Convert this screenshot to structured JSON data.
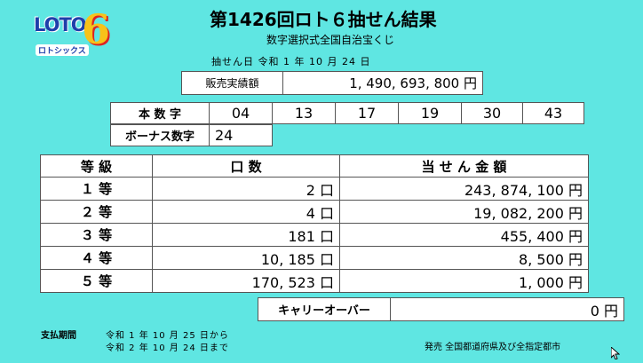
{
  "logo": {
    "text": "LOTO",
    "six": "6",
    "sub": "ロトシックス"
  },
  "title": "第1426回ロト６抽せん結果",
  "subtitle": "数字選択式全国自治宝くじ",
  "draw_date": "抽せん日  令和  1  年  10  月  24  日",
  "sales": {
    "label": "販売実績額",
    "value": "1, 490, 693, 800 円"
  },
  "main_numbers": {
    "label": "本 数 字",
    "values": [
      "04",
      "13",
      "17",
      "19",
      "30",
      "43"
    ]
  },
  "bonus": {
    "label": "ボーナス数字",
    "value": "24"
  },
  "prize_table": {
    "headers": [
      "等  級",
      "口  数",
      "当 せ ん 金 額"
    ],
    "rows": [
      {
        "grade": "１ 等",
        "count": "2 口",
        "amount": "243, 874, 100 円"
      },
      {
        "grade": "２ 等",
        "count": "4 口",
        "amount": "19, 082, 200 円"
      },
      {
        "grade": "３ 等",
        "count": "181 口",
        "amount": "455, 400 円"
      },
      {
        "grade": "４ 等",
        "count": "10, 185 口",
        "amount": "8, 500 円"
      },
      {
        "grade": "５ 等",
        "count": "170, 523 口",
        "amount": "1, 000 円"
      }
    ]
  },
  "carryover": {
    "label": "キャリーオーバー",
    "value": "0 円"
  },
  "footer": {
    "payment_label": "支払期間",
    "payment_from": "令和  1  年  10  月  25  日から",
    "payment_to": "令和  2  年  10  月  24  日まで",
    "issuer": "発売   全国都道府県及び全指定都市"
  }
}
